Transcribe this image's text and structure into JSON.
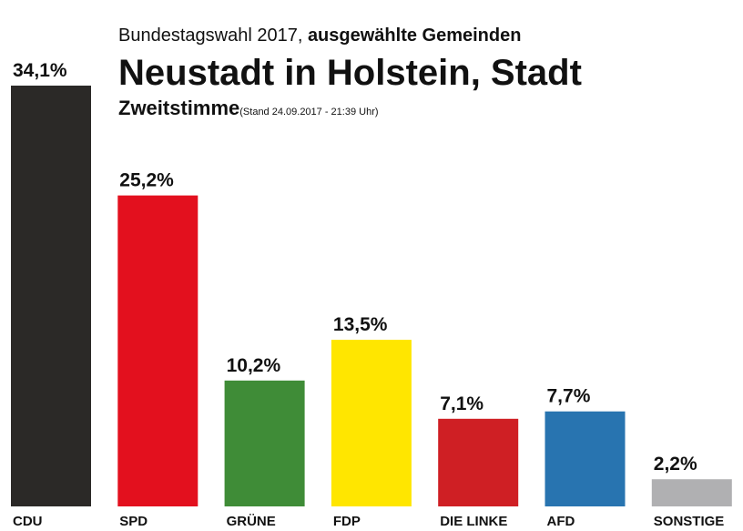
{
  "header": {
    "line1_prefix": "Bundestagswahl 2017, ",
    "line1_bold": "ausgewählte Gemeinden",
    "title": "Neustadt in Holstein, Stadt",
    "subtitle": "Zweitstimme",
    "stand": "(Stand 24.09.2017 - 21:39 Uhr)"
  },
  "chart_data": {
    "type": "bar",
    "categories": [
      "CDU",
      "SPD",
      "GRÜNE",
      "FDP",
      "DIE LINKE",
      "AFD",
      "SONSTIGE"
    ],
    "values": [
      34.1,
      25.2,
      10.2,
      13.5,
      7.1,
      7.7,
      2.2
    ],
    "value_labels": [
      "34,1%",
      "25,2%",
      "10,2%",
      "13,5%",
      "7,1%",
      "7,7%",
      "2,2%"
    ],
    "colors": [
      "#2b2927",
      "#e3101e",
      "#3f8c37",
      "#ffe600",
      "#cf1f24",
      "#2874b0",
      "#b0b0b2"
    ],
    "ylim": [
      0,
      34.1
    ],
    "grid": false,
    "legend": "none",
    "title": "Neustadt in Holstein, Stadt"
  }
}
